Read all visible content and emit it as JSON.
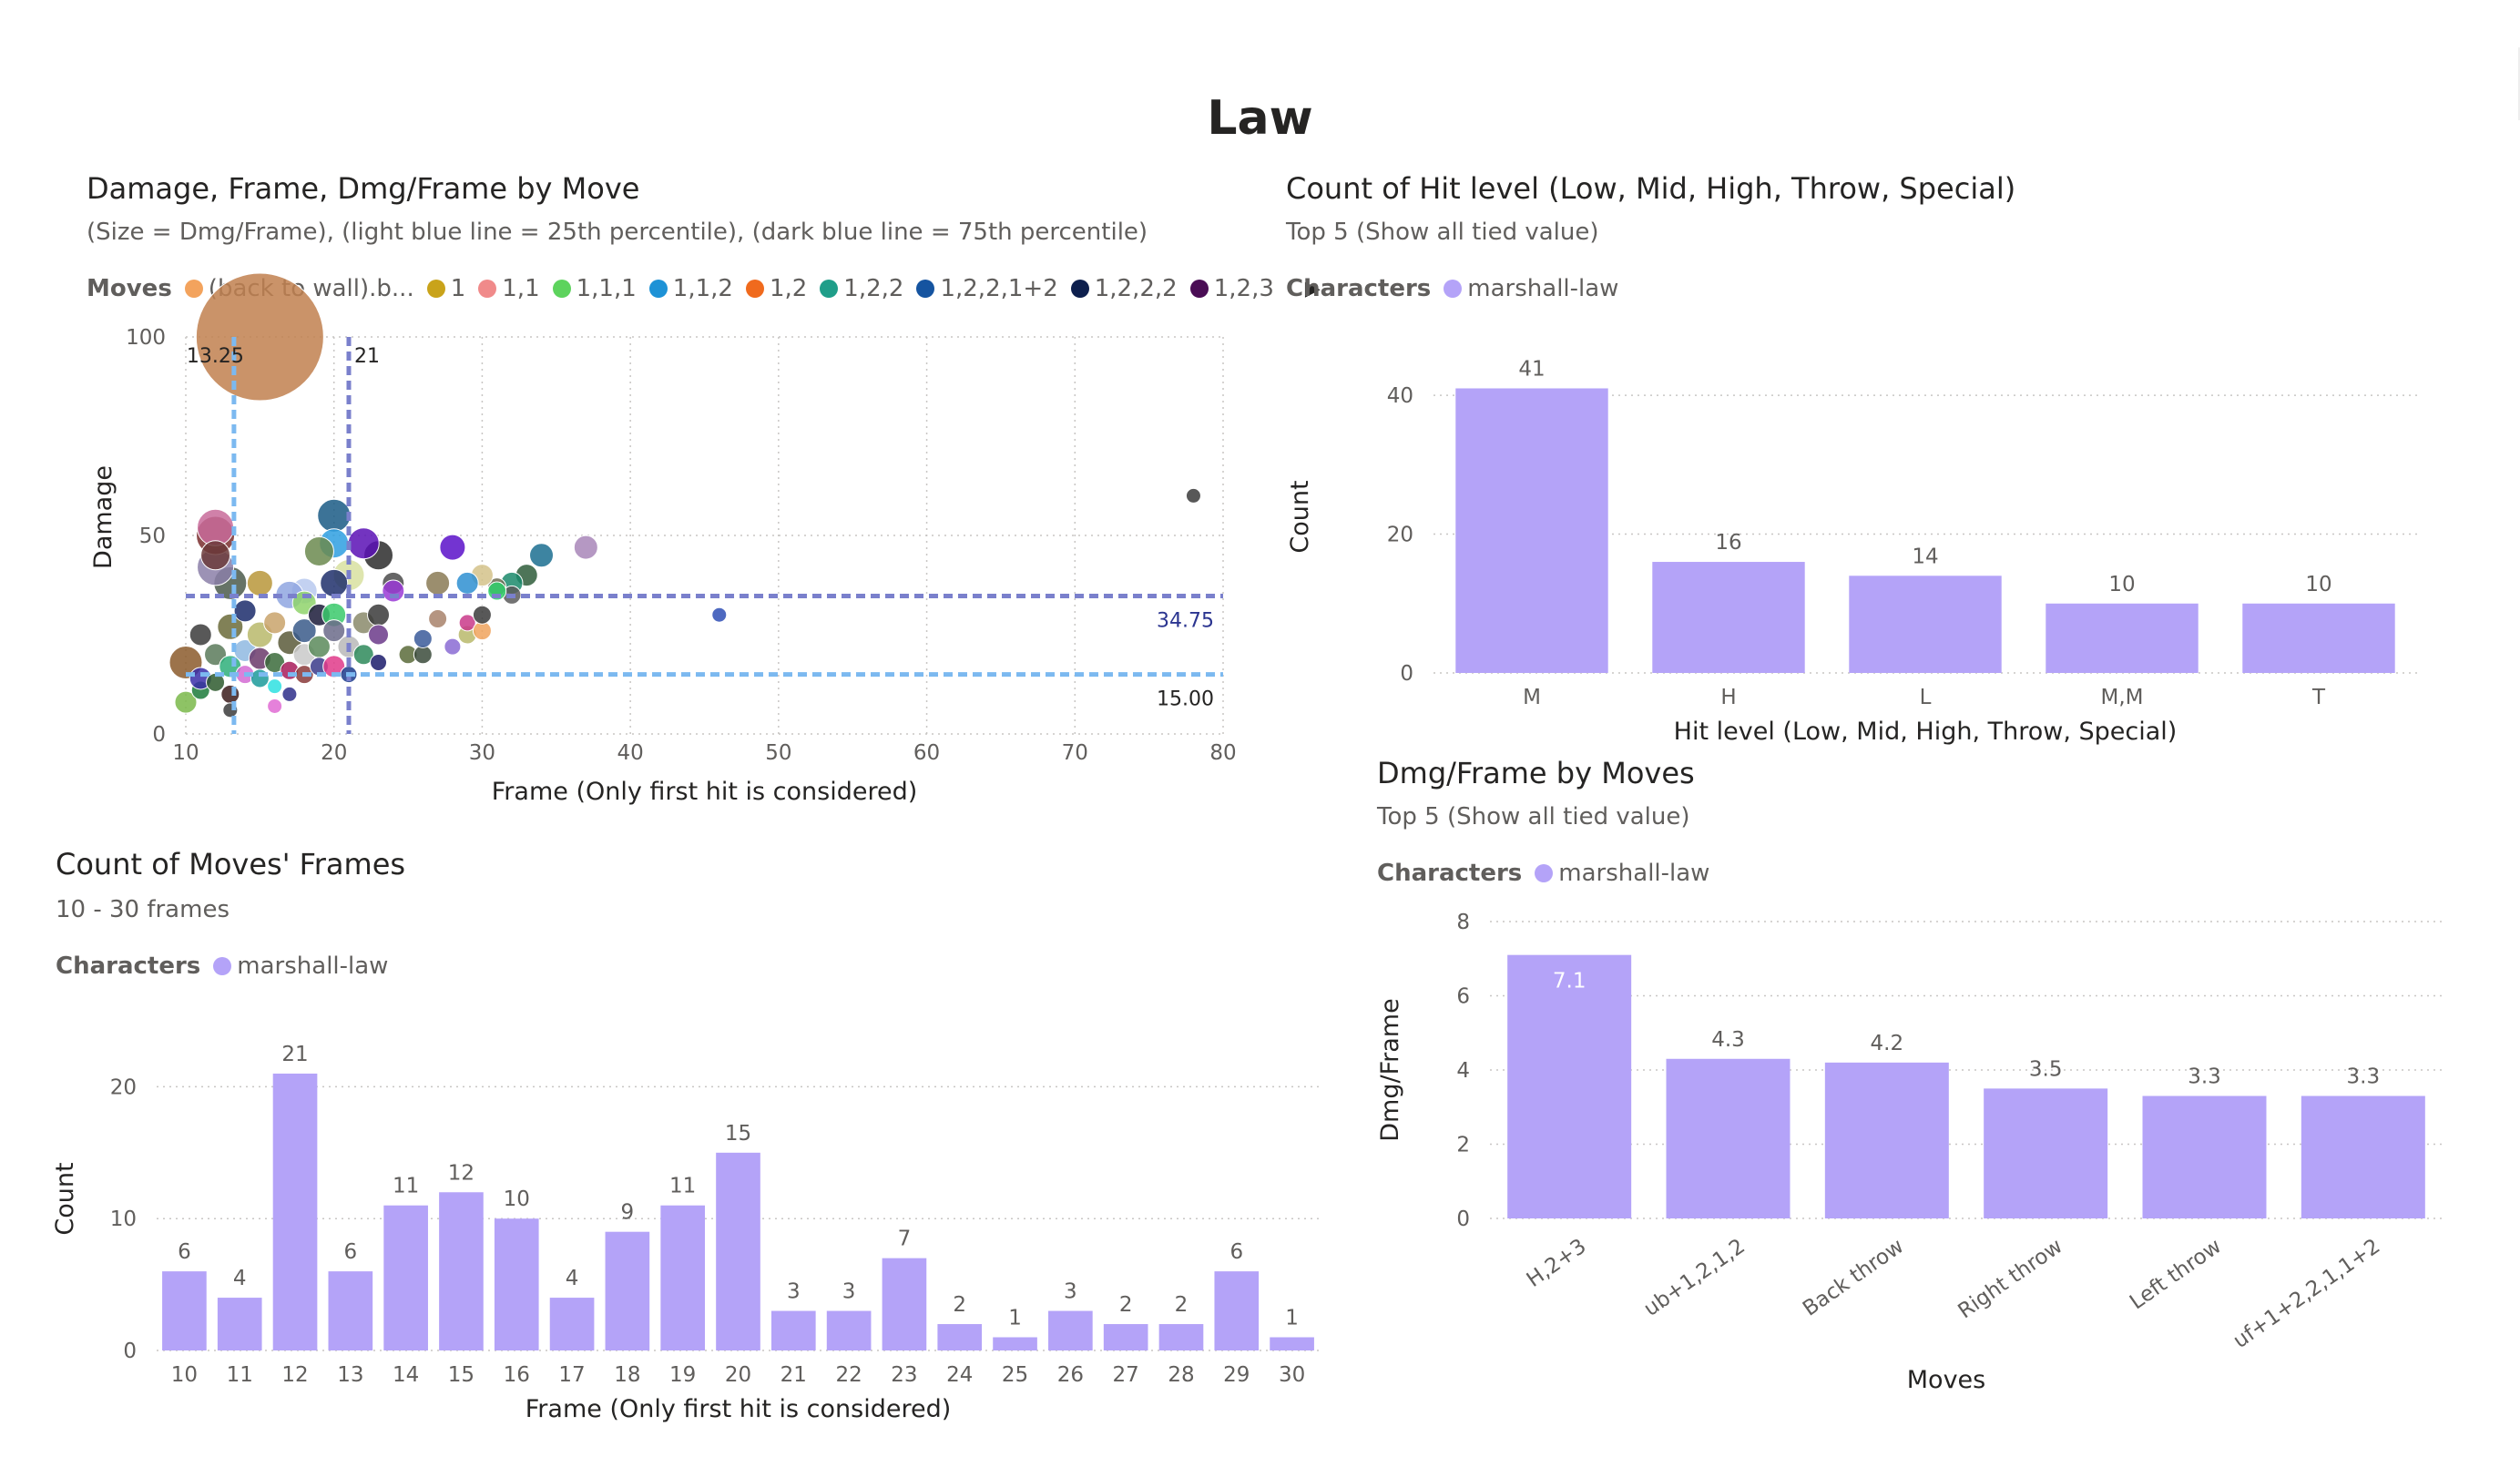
{
  "page": {
    "title": "Law"
  },
  "colors": {
    "bar": "#b4a3f8",
    "p25_line": "#7cb9f0",
    "p75_line": "#7a80cc",
    "marker_legend": "#b4a3f8"
  },
  "legend_characters": {
    "label": "Characters",
    "item": "marshall-law"
  },
  "scatter": {
    "title": "Damage, Frame, Dmg/Frame by Move",
    "subtitle": "(Size = Dmg/Frame), (light blue line = 25th percentile), (dark blue line = 75th percentile)",
    "legend_label": "Moves",
    "legend_items": [
      {
        "name": "(back to wall).b...",
        "color": "#f3a35d"
      },
      {
        "name": "1",
        "color": "#c9a31a"
      },
      {
        "name": "1,1",
        "color": "#f08a8a"
      },
      {
        "name": "1,1,1",
        "color": "#5dd35d"
      },
      {
        "name": "1,1,2",
        "color": "#1d92d6"
      },
      {
        "name": "1,2",
        "color": "#f06a1d"
      },
      {
        "name": "1,2,2",
        "color": "#1f9e89"
      },
      {
        "name": "1,2,2,1+2",
        "color": "#1554a0"
      },
      {
        "name": "1,2,2,2",
        "color": "#0d1f4d"
      },
      {
        "name": "1,2,3",
        "color": "#4a0d55"
      }
    ],
    "legend_more_icon": "caret-right-icon"
  },
  "hit_level": {
    "title": "Count of Hit level (Low, Mid, High, Throw, Special)",
    "subtitle": "Top 5 (Show all tied value)"
  },
  "frames": {
    "title": "Count of Moves' Frames",
    "subtitle": "10 - 30 frames"
  },
  "dmg_frame": {
    "title": "Dmg/Frame by Moves",
    "subtitle": "Top 5 (Show all tied value)"
  },
  "chart_data": [
    {
      "id": "scatter",
      "type": "scatter",
      "xlabel": "Frame (Only first hit is considered)",
      "ylabel": "Damage",
      "xlim": [
        10,
        80
      ],
      "ylim": [
        0,
        100
      ],
      "xticks": [
        "10",
        "20",
        "30",
        "40",
        "50",
        "60",
        "70",
        "80"
      ],
      "yticks": [
        "0",
        "50",
        "100"
      ],
      "grid": true,
      "reference_lines": [
        {
          "axis": "x",
          "value": 13.25,
          "label": "13.25",
          "kind": "p25"
        },
        {
          "axis": "x",
          "value": 21,
          "label": "21",
          "kind": "p75"
        },
        {
          "axis": "y",
          "value": 34.75,
          "label": "34.75",
          "kind": "p75"
        },
        {
          "axis": "y",
          "value": 15,
          "label": "15.00",
          "kind": "p25"
        }
      ],
      "points": [
        {
          "x": 15,
          "y": 100,
          "s": 7.0,
          "c": "#c1804f"
        },
        {
          "x": 78,
          "y": 60,
          "s": 0.8,
          "c": "#3b3b3b"
        },
        {
          "x": 46,
          "y": 30,
          "s": 0.8,
          "c": "#2f4fb5"
        },
        {
          "x": 37,
          "y": 47,
          "s": 1.3,
          "c": "#a886b8"
        },
        {
          "x": 34,
          "y": 45,
          "s": 1.3,
          "c": "#1b6e91"
        },
        {
          "x": 33,
          "y": 40,
          "s": 1.2,
          "c": "#2f5d3b"
        },
        {
          "x": 32,
          "y": 38,
          "s": 1.2,
          "c": "#1b8a6b"
        },
        {
          "x": 32,
          "y": 35,
          "s": 1.0,
          "c": "#5b5b5b"
        },
        {
          "x": 31,
          "y": 37,
          "s": 1.0,
          "c": "#6b6b50"
        },
        {
          "x": 30,
          "y": 40,
          "s": 1.2,
          "c": "#d3c28a"
        },
        {
          "x": 31,
          "y": 36,
          "s": 1.0,
          "c": "#2ecf6a"
        },
        {
          "x": 29,
          "y": 38,
          "s": 1.2,
          "c": "#2e8fd1"
        },
        {
          "x": 28,
          "y": 47,
          "s": 1.4,
          "c": "#5a10c9"
        },
        {
          "x": 27,
          "y": 38,
          "s": 1.3,
          "c": "#8a7a55"
        },
        {
          "x": 24,
          "y": 38,
          "s": 1.2,
          "c": "#4b4b4b"
        },
        {
          "x": 24,
          "y": 36,
          "s": 1.2,
          "c": "#9a3ad6"
        },
        {
          "x": 23,
          "y": 45,
          "s": 1.6,
          "c": "#2b2b2b"
        },
        {
          "x": 22,
          "y": 48,
          "s": 1.7,
          "c": "#5a10b5"
        },
        {
          "x": 20,
          "y": 55,
          "s": 1.8,
          "c": "#1a5b85"
        },
        {
          "x": 20,
          "y": 48,
          "s": 1.6,
          "c": "#2e9fe0"
        },
        {
          "x": 19,
          "y": 46,
          "s": 1.6,
          "c": "#6b8a4f"
        },
        {
          "x": 21,
          "y": 40,
          "s": 1.7,
          "c": "#d8e0a0"
        },
        {
          "x": 20,
          "y": 38,
          "s": 1.5,
          "c": "#1e2f6b"
        },
        {
          "x": 18,
          "y": 36,
          "s": 1.4,
          "c": "#b8c9ef"
        },
        {
          "x": 17,
          "y": 35,
          "s": 1.5,
          "c": "#8fa6e0"
        },
        {
          "x": 15,
          "y": 38,
          "s": 1.4,
          "c": "#b8963a"
        },
        {
          "x": 13,
          "y": 38,
          "s": 1.8,
          "c": "#4b5b4b"
        },
        {
          "x": 12,
          "y": 42,
          "s": 2.0,
          "c": "#8b7fa8"
        },
        {
          "x": 12,
          "y": 50,
          "s": 2.1,
          "c": "#7a2e2e"
        },
        {
          "x": 12,
          "y": 52,
          "s": 2.0,
          "c": "#c86b9a"
        },
        {
          "x": 12,
          "y": 45,
          "s": 1.6,
          "c": "#6b3a3a"
        },
        {
          "x": 11,
          "y": 25,
          "s": 1.2,
          "c": "#3b3b3b"
        },
        {
          "x": 10,
          "y": 18,
          "s": 1.8,
          "c": "#8b5a2b"
        },
        {
          "x": 10,
          "y": 8,
          "s": 1.2,
          "c": "#7ab84a"
        },
        {
          "x": 11,
          "y": 11,
          "s": 1.0,
          "c": "#1b7a3a"
        },
        {
          "x": 11,
          "y": 14,
          "s": 1.2,
          "c": "#3a2ea8"
        },
        {
          "x": 12,
          "y": 20,
          "s": 1.2,
          "c": "#5b7a5b"
        },
        {
          "x": 12,
          "y": 13,
          "s": 1.0,
          "c": "#2e5b2e"
        },
        {
          "x": 13,
          "y": 27,
          "s": 1.4,
          "c": "#6b6b3a"
        },
        {
          "x": 13,
          "y": 17,
          "s": 1.2,
          "c": "#2eaf7a"
        },
        {
          "x": 13,
          "y": 10,
          "s": 1.0,
          "c": "#3b1b1b"
        },
        {
          "x": 13,
          "y": 6,
          "s": 0.8,
          "c": "#3b3b3b"
        },
        {
          "x": 14,
          "y": 21,
          "s": 1.2,
          "c": "#8fb8e0"
        },
        {
          "x": 14,
          "y": 31,
          "s": 1.2,
          "c": "#1b2b6b"
        },
        {
          "x": 14,
          "y": 15,
          "s": 1.0,
          "c": "#d36bd3"
        },
        {
          "x": 15,
          "y": 25,
          "s": 1.4,
          "c": "#b8b86b"
        },
        {
          "x": 15,
          "y": 19,
          "s": 1.2,
          "c": "#6b3a6b"
        },
        {
          "x": 15,
          "y": 14,
          "s": 1.0,
          "c": "#1b9a9a"
        },
        {
          "x": 16,
          "y": 28,
          "s": 1.2,
          "c": "#c9a36b"
        },
        {
          "x": 16,
          "y": 18,
          "s": 1.1,
          "c": "#3b6b3b"
        },
        {
          "x": 16,
          "y": 12,
          "s": 0.8,
          "c": "#2ee0e0"
        },
        {
          "x": 16,
          "y": 7,
          "s": 0.8,
          "c": "#e06bd3"
        },
        {
          "x": 17,
          "y": 23,
          "s": 1.3,
          "c": "#5b5b3a"
        },
        {
          "x": 17,
          "y": 16,
          "s": 1.0,
          "c": "#a81b5b"
        },
        {
          "x": 17,
          "y": 10,
          "s": 0.8,
          "c": "#2e2e8a"
        },
        {
          "x": 18,
          "y": 33,
          "s": 1.3,
          "c": "#8fd36b"
        },
        {
          "x": 18,
          "y": 26,
          "s": 1.3,
          "c": "#3a5b8a"
        },
        {
          "x": 18,
          "y": 20,
          "s": 1.2,
          "c": "#c9c9c9"
        },
        {
          "x": 18,
          "y": 15,
          "s": 1.0,
          "c": "#8a3a3a"
        },
        {
          "x": 19,
          "y": 30,
          "s": 1.2,
          "c": "#1b1b3a"
        },
        {
          "x": 19,
          "y": 22,
          "s": 1.2,
          "c": "#5b8a5b"
        },
        {
          "x": 19,
          "y": 17,
          "s": 1.0,
          "c": "#3a3a8a"
        },
        {
          "x": 20,
          "y": 30,
          "s": 1.3,
          "c": "#3ac96b"
        },
        {
          "x": 20,
          "y": 26,
          "s": 1.2,
          "c": "#6b6b8a"
        },
        {
          "x": 20,
          "y": 17,
          "s": 1.2,
          "c": "#e03a8a"
        },
        {
          "x": 21,
          "y": 22,
          "s": 1.2,
          "c": "#b8b8b8"
        },
        {
          "x": 21,
          "y": 15,
          "s": 0.9,
          "c": "#1b3a8a"
        },
        {
          "x": 22,
          "y": 28,
          "s": 1.2,
          "c": "#8a8a6b"
        },
        {
          "x": 22,
          "y": 20,
          "s": 1.1,
          "c": "#2e8a5b"
        },
        {
          "x": 23,
          "y": 30,
          "s": 1.2,
          "c": "#3a3a3a"
        },
        {
          "x": 23,
          "y": 25,
          "s": 1.1,
          "c": "#6b3a8a"
        },
        {
          "x": 23,
          "y": 18,
          "s": 0.9,
          "c": "#1b1b6b"
        },
        {
          "x": 25,
          "y": 20,
          "s": 1.0,
          "c": "#5b6b3a"
        },
        {
          "x": 26,
          "y": 20,
          "s": 1.0,
          "c": "#3b4b3b"
        },
        {
          "x": 26,
          "y": 24,
          "s": 1.0,
          "c": "#3a5b9a"
        },
        {
          "x": 27,
          "y": 29,
          "s": 1.0,
          "c": "#a8836b"
        },
        {
          "x": 28,
          "y": 22,
          "s": 0.9,
          "c": "#8a6bd3"
        },
        {
          "x": 29,
          "y": 25,
          "s": 1.0,
          "c": "#b8b86b"
        },
        {
          "x": 29,
          "y": 28,
          "s": 0.9,
          "c": "#c93a8a"
        },
        {
          "x": 30,
          "y": 26,
          "s": 1.0,
          "c": "#f0a35d"
        },
        {
          "x": 30,
          "y": 30,
          "s": 1.0,
          "c": "#3b3b3b"
        }
      ]
    },
    {
      "id": "hit_level",
      "type": "bar",
      "categories": [
        "M",
        "H",
        "L",
        "M,M",
        "T"
      ],
      "values": [
        41,
        16,
        14,
        10,
        10
      ],
      "xlabel": "Hit level (Low, Mid, High, Throw, Special)",
      "ylabel": "Count",
      "ylim": [
        0,
        45
      ],
      "yticks": [
        "0",
        "20",
        "40"
      ],
      "series": [
        {
          "name": "marshall-law",
          "values": [
            41,
            16,
            14,
            10,
            10
          ]
        }
      ]
    },
    {
      "id": "frames",
      "type": "bar",
      "categories": [
        "10",
        "11",
        "12",
        "13",
        "14",
        "15",
        "16",
        "17",
        "18",
        "19",
        "20",
        "21",
        "22",
        "23",
        "24",
        "25",
        "26",
        "27",
        "28",
        "29",
        "30"
      ],
      "values": [
        6,
        4,
        21,
        6,
        11,
        12,
        10,
        4,
        9,
        11,
        15,
        3,
        3,
        7,
        2,
        1,
        3,
        2,
        2,
        6,
        1
      ],
      "xlabel": "Frame (Only first hit is considered)",
      "ylabel": "Count",
      "ylim": [
        0,
        23
      ],
      "yticks": [
        "0",
        "10",
        "20"
      ],
      "series": [
        {
          "name": "marshall-law",
          "values": [
            6,
            4,
            21,
            6,
            11,
            12,
            10,
            4,
            9,
            11,
            15,
            3,
            3,
            7,
            2,
            1,
            3,
            2,
            2,
            6,
            1
          ]
        }
      ]
    },
    {
      "id": "dmg_frame",
      "type": "bar",
      "categories": [
        "H,2+3",
        "ub+1,2,1,2",
        "Back throw",
        "Right throw",
        "Left throw",
        "uf+1+2,2,1,1+2"
      ],
      "values": [
        7.1,
        4.3,
        4.2,
        3.5,
        3.3,
        3.3
      ],
      "xlabel": "Moves",
      "ylabel": "Dmg/Frame",
      "ylim": [
        0,
        8
      ],
      "yticks": [
        "0",
        "2",
        "4",
        "6",
        "8"
      ],
      "series": [
        {
          "name": "marshall-law",
          "values": [
            7.1,
            4.3,
            4.2,
            3.5,
            3.3,
            3.3
          ]
        }
      ]
    }
  ]
}
